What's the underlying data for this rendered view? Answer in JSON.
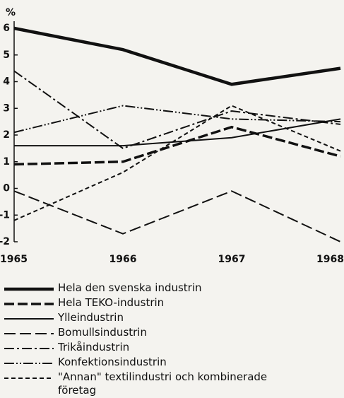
{
  "chart_data": {
    "type": "line",
    "ylabel": "%",
    "x": [
      "1965",
      "1966",
      "1967",
      "1968"
    ],
    "ylim": [
      -2,
      6
    ],
    "yticks": [
      -2,
      -1,
      0,
      1,
      2,
      3,
      4,
      5,
      6
    ],
    "series": [
      {
        "name": "Hela den svenska industrin",
        "color": "#111111",
        "width": 4.5,
        "dash": "none",
        "values": [
          6.0,
          5.2,
          3.9,
          4.5
        ]
      },
      {
        "name": "Hela TEKO-industrin",
        "color": "#111111",
        "width": 3.5,
        "dash": "14 5",
        "values": [
          0.9,
          1.0,
          2.3,
          1.2
        ]
      },
      {
        "name": "Ylleindustrin",
        "color": "#111111",
        "width": 2,
        "dash": "none",
        "values": [
          1.6,
          1.6,
          1.9,
          2.6
        ]
      },
      {
        "name": "Bomullsindustrin",
        "color": "#111111",
        "width": 2,
        "dash": "16 6",
        "values": [
          -0.1,
          -1.7,
          -0.1,
          -2.0
        ]
      },
      {
        "name": "Trikåindustrin",
        "color": "#111111",
        "width": 2,
        "dash": "14 4 3 4",
        "values": [
          4.4,
          1.5,
          2.9,
          2.4
        ]
      },
      {
        "name": "Konfektionsindustrin",
        "color": "#111111",
        "width": 2,
        "dash": "14 3 2 3 2 3",
        "values": [
          2.1,
          3.1,
          2.6,
          2.5
        ]
      },
      {
        "name": "\"Annan\" textilindustri och kombinerade företag",
        "color": "#111111",
        "width": 2,
        "dash": "6 4",
        "values": [
          -1.2,
          0.6,
          3.1,
          1.4
        ]
      }
    ]
  }
}
